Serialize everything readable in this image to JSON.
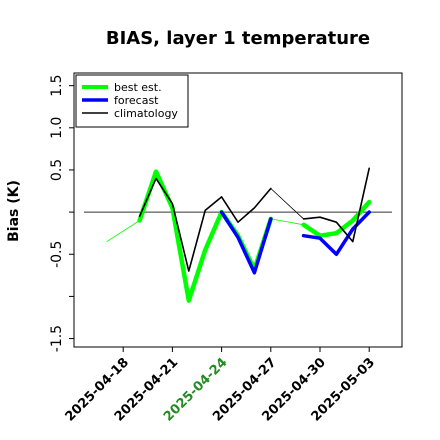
{
  "chart_data": {
    "type": "line",
    "title": "BIAS, layer 1 temperature",
    "xlabel": "",
    "ylabel": "Bias (K)",
    "xlim": [
      "2025-04-15",
      "2025-05-05"
    ],
    "ylim": [
      -1.6,
      1.65
    ],
    "yticks": [
      -1.5,
      -1.0,
      -0.5,
      0.0,
      0.5,
      1.0,
      1.5
    ],
    "ytick_labels": [
      "-1.5",
      "",
      "-0.5",
      "",
      "0.5",
      "1.0",
      "1.5"
    ],
    "xticks": [
      "2025-04-18",
      "2025-04-21",
      "2025-04-24",
      "2025-04-27",
      "2025-04-30",
      "2025-05-03"
    ],
    "highlight_tick": "2025-04-24",
    "highlight_color": "#228b22",
    "zero_line": 0.0,
    "legend_position": "top-left",
    "series": [
      {
        "name": "best est.",
        "color": "#00ff00",
        "segments": [
          {
            "x": [
              "2025-04-17",
              "2025-04-19"
            ],
            "y": [
              -0.35,
              -0.1
            ],
            "thin": true
          },
          {
            "x": [
              "2025-04-19",
              "2025-04-20",
              "2025-04-21",
              "2025-04-22",
              "2025-04-23",
              "2025-04-24",
              "2025-04-25",
              "2025-04-26",
              "2025-04-27"
            ],
            "y": [
              -0.1,
              0.48,
              0.05,
              -1.05,
              -0.45,
              0.0,
              -0.28,
              -0.68,
              -0.08
            ],
            "thin": false
          },
          {
            "x": [
              "2025-04-27",
              "2025-04-29"
            ],
            "y": [
              -0.08,
              -0.15
            ],
            "thin": true
          },
          {
            "x": [
              "2025-04-29",
              "2025-04-30",
              "2025-05-01",
              "2025-05-02",
              "2025-05-03"
            ],
            "y": [
              -0.15,
              -0.28,
              -0.25,
              -0.1,
              0.12
            ],
            "thin": false
          }
        ]
      },
      {
        "name": "forecast",
        "color": "#0000ff",
        "segments": [
          {
            "x": [
              "2025-04-24",
              "2025-04-25",
              "2025-04-26",
              "2025-04-27"
            ],
            "y": [
              0.0,
              -0.3,
              -0.72,
              -0.08
            ],
            "thin": false
          },
          {
            "x": [
              "2025-04-29",
              "2025-04-30",
              "2025-05-01",
              "2025-05-02",
              "2025-05-03"
            ],
            "y": [
              -0.28,
              -0.31,
              -0.5,
              -0.2,
              0.0
            ],
            "thin": false
          }
        ]
      },
      {
        "name": "climatology",
        "color": "#000000",
        "segments": [
          {
            "x": [
              "2025-04-19",
              "2025-04-20",
              "2025-04-21",
              "2025-04-22",
              "2025-04-23",
              "2025-04-24",
              "2025-04-25",
              "2025-04-26",
              "2025-04-27"
            ],
            "y": [
              -0.05,
              0.4,
              0.1,
              -0.7,
              0.02,
              0.18,
              -0.12,
              0.05,
              0.28
            ],
            "thin": false
          },
          {
            "x": [
              "2025-04-27",
              "2025-04-29"
            ],
            "y": [
              0.28,
              -0.08
            ],
            "thin": true
          },
          {
            "x": [
              "2025-04-29",
              "2025-04-30",
              "2025-05-01",
              "2025-05-02",
              "2025-05-03"
            ],
            "y": [
              -0.08,
              -0.06,
              -0.12,
              -0.35,
              0.52
            ],
            "thin": false
          }
        ]
      }
    ]
  }
}
